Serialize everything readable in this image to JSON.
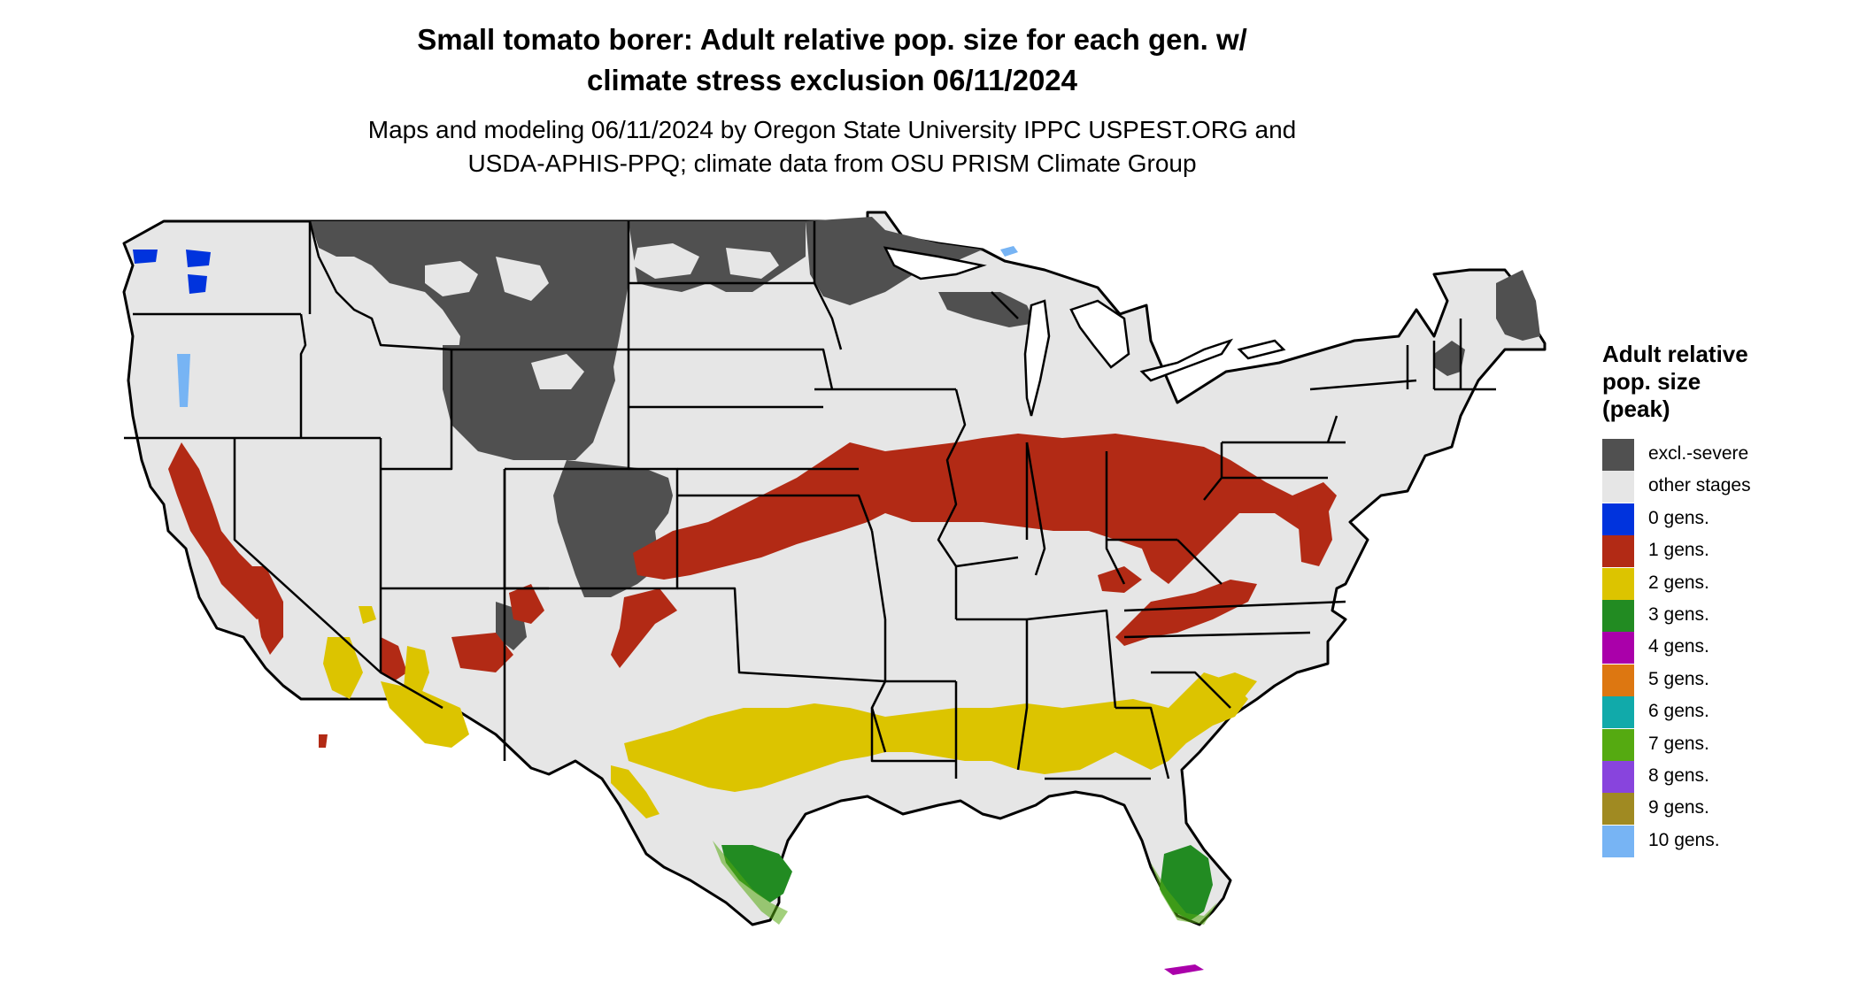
{
  "title": {
    "line1": "Small tomato borer: Adult relative pop. size for each gen. w/",
    "line2": "climate stress exclusion 06/11/2024"
  },
  "subtitle": {
    "line1": "Maps and modeling 06/11/2024 by Oregon State University IPPC USPEST.ORG and",
    "line2": "USDA-APHIS-PPQ; climate data from OSU PRISM Climate Group"
  },
  "map": {
    "region": "contiguous United States",
    "base_color": "#e6e6e6",
    "border_color": "#000000"
  },
  "legend": {
    "title_lines": [
      "Adult relative",
      "pop. size",
      "(peak)"
    ],
    "items": [
      {
        "label": "excl.-severe",
        "color": "#505050"
      },
      {
        "label": "other stages",
        "color": "#e6e6e6"
      },
      {
        "label": "0 gens.",
        "color": "#0033dd"
      },
      {
        "label": "1 gens.",
        "color": "#b22a15"
      },
      {
        "label": "2 gens.",
        "color": "#dcc400"
      },
      {
        "label": "3 gens.",
        "color": "#228b22"
      },
      {
        "label": "4 gens.",
        "color": "#aa00aa"
      },
      {
        "label": "5 gens.",
        "color": "#dd7711"
      },
      {
        "label": "6 gens.",
        "color": "#11aaaa"
      },
      {
        "label": "7 gens.",
        "color": "#55aa11"
      },
      {
        "label": "8 gens.",
        "color": "#8844dd"
      },
      {
        "label": "9 gens.",
        "color": "#a08a22"
      },
      {
        "label": "10 gens.",
        "color": "#77b4f4"
      }
    ]
  }
}
